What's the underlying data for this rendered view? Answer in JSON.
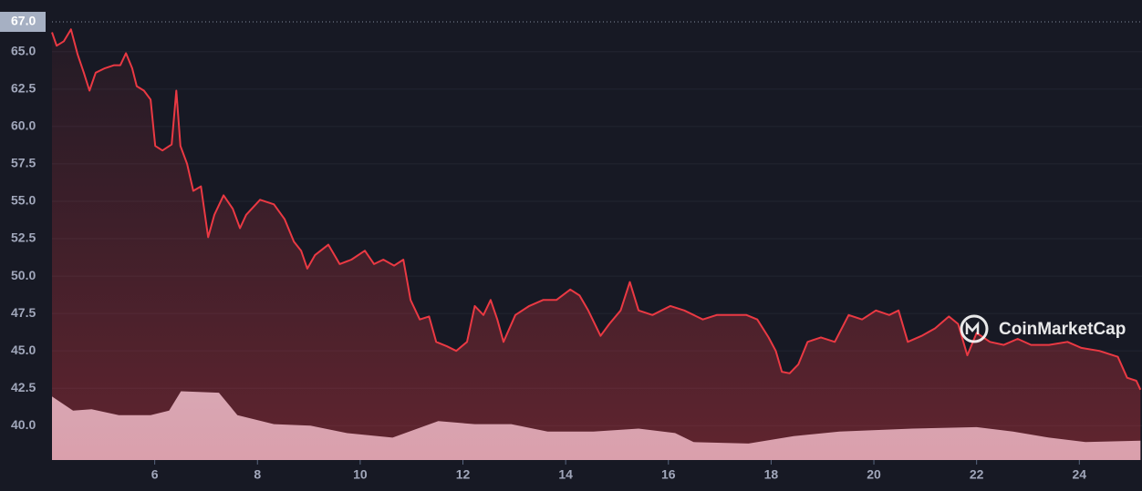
{
  "chart_data": {
    "type": "line",
    "x": [
      4.0,
      4.09,
      4.23,
      4.37,
      4.5,
      4.62,
      4.73,
      4.85,
      5.03,
      5.21,
      5.33,
      5.44,
      5.56,
      5.65,
      5.79,
      5.92,
      6.01,
      6.15,
      6.33,
      6.42,
      6.5,
      6.63,
      6.75,
      6.9,
      7.04,
      7.16,
      7.34,
      7.52,
      7.66,
      7.78,
      8.05,
      8.32,
      8.53,
      8.71,
      8.85,
      8.97,
      9.12,
      9.38,
      9.6,
      9.83,
      10.09,
      10.27,
      10.45,
      10.66,
      10.84,
      10.98,
      11.16,
      11.34,
      11.48,
      11.69,
      11.87,
      12.08,
      12.23,
      12.4,
      12.54,
      12.67,
      12.79,
      13.02,
      13.29,
      13.56,
      13.82,
      14.09,
      14.27,
      14.44,
      14.68,
      14.85,
      15.07,
      15.25,
      15.42,
      15.69,
      16.04,
      16.31,
      16.67,
      16.94,
      17.2,
      17.52,
      17.73,
      17.95,
      18.09,
      18.21,
      18.36,
      18.53,
      18.71,
      18.97,
      19.24,
      19.51,
      19.77,
      20.04,
      20.3,
      20.48,
      20.66,
      20.93,
      21.19,
      21.46,
      21.64,
      21.82,
      22.0,
      22.26,
      22.53,
      22.8,
      23.06,
      23.41,
      23.77,
      24.04,
      24.39,
      24.75,
      24.93,
      25.11,
      25.19
    ],
    "series": [
      {
        "color": "#ea3943",
        "values": [
          66.3,
          65.4,
          65.7,
          66.5,
          64.8,
          63.6,
          62.4,
          63.6,
          63.9,
          64.1,
          64.1,
          64.9,
          63.9,
          62.7,
          62.4,
          61.8,
          58.7,
          58.4,
          58.8,
          62.4,
          58.7,
          57.5,
          55.7,
          56.0,
          52.6,
          54.1,
          55.4,
          54.5,
          53.2,
          54.1,
          55.1,
          54.8,
          53.8,
          52.3,
          51.7,
          50.5,
          51.4,
          52.1,
          50.8,
          51.1,
          51.7,
          50.8,
          51.1,
          50.7,
          51.1,
          48.4,
          47.1,
          47.3,
          45.6,
          45.3,
          45.0,
          45.6,
          48.0,
          47.4,
          48.4,
          47.1,
          45.6,
          47.4,
          48.0,
          48.4,
          48.4,
          49.1,
          48.7,
          47.7,
          46.0,
          46.8,
          47.7,
          49.6,
          47.7,
          47.4,
          48.0,
          47.7,
          47.1,
          47.4,
          47.4,
          47.4,
          47.1,
          45.9,
          45.0,
          43.6,
          43.5,
          44.1,
          45.6,
          45.9,
          45.6,
          47.4,
          47.1,
          47.7,
          47.4,
          47.7,
          45.6,
          46.0,
          46.5,
          47.3,
          46.8,
          44.7,
          46.2,
          45.6,
          45.4,
          45.8,
          45.4,
          45.4,
          45.6,
          45.2,
          45.0,
          44.6,
          43.2,
          43.0,
          42.4
        ]
      }
    ],
    "volume": {
      "color": "#d1d6e4",
      "x": [
        4.0,
        4.41,
        4.77,
        5.3,
        5.92,
        6.28,
        6.51,
        7.25,
        7.61,
        8.32,
        9.03,
        9.74,
        10.63,
        11.52,
        12.23,
        12.94,
        13.65,
        14.54,
        15.42,
        16.13,
        16.49,
        17.56,
        18.44,
        19.33,
        20.75,
        22.0,
        22.71,
        23.41,
        24.12,
        25.19
      ],
      "values": [
        41.95,
        41.0,
        41.1,
        40.7,
        40.7,
        41.0,
        42.3,
        42.2,
        40.7,
        40.1,
        40.0,
        39.5,
        39.2,
        40.3,
        40.1,
        40.1,
        39.6,
        39.6,
        39.8,
        39.5,
        38.9,
        38.8,
        39.3,
        39.6,
        39.8,
        39.9,
        39.6,
        39.2,
        38.9,
        39.0
      ]
    },
    "price_marker": {
      "value": 67.0,
      "label": "67.0"
    },
    "xlim": [
      4,
      25.22
    ],
    "xticks": [
      6,
      8,
      10,
      12,
      14,
      16,
      18,
      20,
      22,
      24
    ],
    "ylim": [
      37.7,
      68.46
    ],
    "yticks": [
      {
        "value": 40,
        "label": "40.0"
      },
      {
        "value": 42.5,
        "label": "42.5"
      },
      {
        "value": 45,
        "label": "45.0"
      },
      {
        "value": 47.5,
        "label": "47.5"
      },
      {
        "value": 50,
        "label": "50.0"
      },
      {
        "value": 52.5,
        "label": "52.5"
      },
      {
        "value": 55,
        "label": "55.0"
      },
      {
        "value": 57.5,
        "label": "57.5"
      },
      {
        "value": 60,
        "label": "60.0"
      },
      {
        "value": 62.5,
        "label": "62.5"
      },
      {
        "value": 65,
        "label": "65.0"
      }
    ],
    "grid": true,
    "watermark": "CoinMarketCap"
  }
}
